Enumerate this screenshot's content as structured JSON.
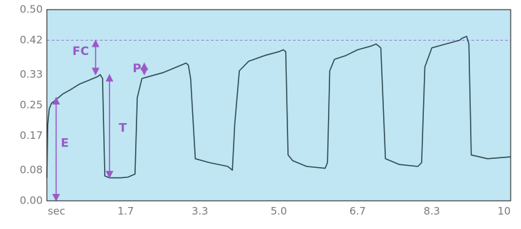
{
  "chart_data": {
    "type": "line",
    "title": "",
    "xlabel": "",
    "ylabel": "",
    "x_unit_label": "sec",
    "xlim": [
      0,
      10
    ],
    "ylim": [
      0,
      0.5
    ],
    "x_tick_labels": [
      "1.7",
      "3.3",
      "5.0",
      "6.7",
      "8.3",
      "10"
    ],
    "x_tick_values": [
      1.7,
      3.3,
      5.0,
      6.7,
      8.3,
      10
    ],
    "y_tick_labels": [
      "0.00",
      "0.08",
      "0.17",
      "0.25",
      "0.33",
      "0.42",
      "0.50"
    ],
    "y_tick_values": [
      0.0,
      0.08,
      0.17,
      0.25,
      0.33,
      0.42,
      0.5
    ],
    "grid": false,
    "background_color": "#bfe6f2",
    "line_color": "#2e4a52",
    "annotation_color": "#9b59c8",
    "reference_line": {
      "y": 0.42,
      "style": "dashed"
    },
    "series": [
      {
        "x": [
          0.0,
          0.02,
          0.05,
          0.1,
          0.2,
          0.35,
          0.5,
          0.7,
          0.9,
          1.1,
          1.15,
          1.2,
          1.25,
          1.35,
          1.6,
          1.75,
          1.9,
          1.95,
          2.05,
          2.2,
          2.5,
          2.8,
          3.0,
          3.05,
          3.1,
          3.2,
          3.5,
          3.9,
          4.0,
          4.05,
          4.15,
          4.35,
          4.7,
          5.0,
          5.1,
          5.15,
          5.2,
          5.3,
          5.6,
          6.0,
          6.05,
          6.1,
          6.2,
          6.45,
          6.7,
          7.0,
          7.1,
          7.2,
          7.3,
          7.6,
          8.0,
          8.08,
          8.15,
          8.3,
          8.6,
          8.9,
          8.95,
          9.05,
          9.1,
          9.15,
          9.5,
          10.0
        ],
        "y": [
          0.06,
          0.2,
          0.24,
          0.255,
          0.265,
          0.28,
          0.29,
          0.305,
          0.315,
          0.325,
          0.33,
          0.32,
          0.065,
          0.06,
          0.06,
          0.062,
          0.07,
          0.27,
          0.32,
          0.325,
          0.335,
          0.35,
          0.36,
          0.355,
          0.32,
          0.11,
          0.1,
          0.09,
          0.08,
          0.2,
          0.34,
          0.365,
          0.38,
          0.39,
          0.395,
          0.39,
          0.12,
          0.105,
          0.09,
          0.085,
          0.1,
          0.34,
          0.37,
          0.38,
          0.395,
          0.405,
          0.41,
          0.4,
          0.11,
          0.095,
          0.09,
          0.1,
          0.35,
          0.4,
          0.41,
          0.42,
          0.425,
          0.43,
          0.41,
          0.12,
          0.11,
          0.115
        ]
      }
    ],
    "annotations": [
      {
        "label": "FC",
        "x": 1.05,
        "y_from": 0.33,
        "y_to": 0.42,
        "label_x": 0.55,
        "label_y": 0.39
      },
      {
        "label": "T",
        "x": 1.35,
        "y_from": 0.06,
        "y_to": 0.33,
        "label_x": 1.55,
        "label_y": 0.19
      },
      {
        "label": "E",
        "x": 0.2,
        "y_from": 0.0,
        "y_to": 0.27,
        "label_x": 0.3,
        "label_y": 0.15
      },
      {
        "label": "P",
        "x": 2.1,
        "y_from": 0.33,
        "y_to": 0.36,
        "label_x": 1.85,
        "label_y": 0.345
      }
    ]
  }
}
